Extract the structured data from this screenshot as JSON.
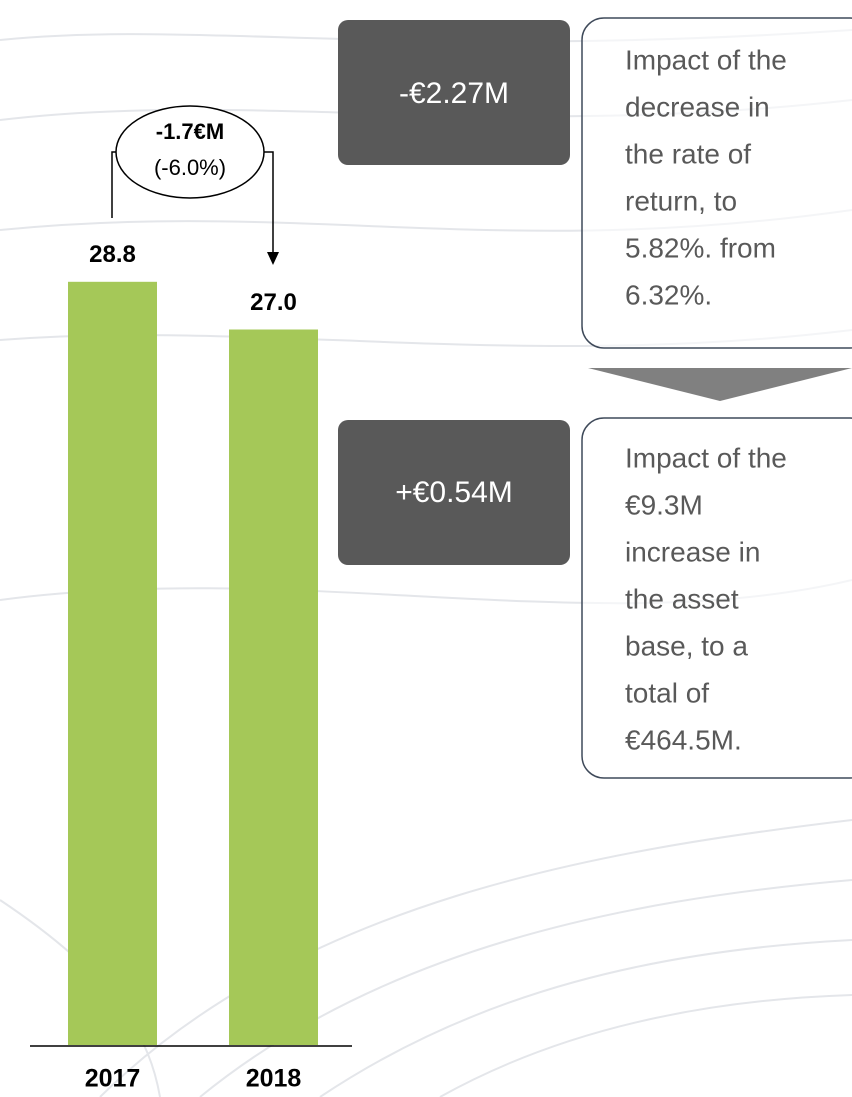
{
  "chart_data": {
    "type": "bar",
    "categories": [
      "2017",
      "2018"
    ],
    "values": [
      28.8,
      27.0
    ],
    "value_labels": [
      "28.8",
      "27.0"
    ],
    "color": "#a5c858",
    "change": {
      "amount": "-1.7€M",
      "percent": "(-6.0%)"
    }
  },
  "impacts": [
    {
      "amount": "-€2.27M",
      "lines": [
        "Impact of the",
        "decrease in",
        "the rate of",
        "return, to",
        "5.82%. from",
        "6.32%."
      ]
    },
    {
      "amount": "+€0.54M",
      "lines": [
        "Impact of the",
        "€9.3M",
        "increase in",
        "the asset",
        "base, to a",
        "total of",
        "€464.5M."
      ]
    }
  ]
}
